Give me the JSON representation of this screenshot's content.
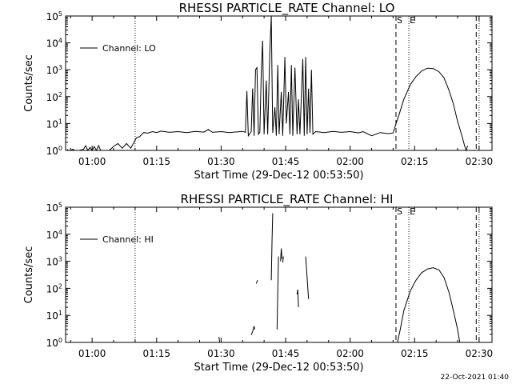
{
  "chart_data": [
    {
      "type": "line",
      "title": "RHESSI PARTICLE_RATE Channel: LO",
      "xlabel": "Start Time (29-Dec-12 00:53:50)",
      "ylabel": "Counts/sec",
      "y_scale": "log",
      "ylim": [
        1,
        100000
      ],
      "xlim": [
        "00:53:50",
        "02:33:00"
      ],
      "x_ticks": [
        "01:00",
        "01:15",
        "01:30",
        "01:45",
        "02:00",
        "02:15",
        "02:30"
      ],
      "y_ticks": [
        "10^0",
        "10^1",
        "10^2",
        "10^3",
        "10^4",
        "10^5"
      ],
      "legend": {
        "entries": [
          "Channel: LO"
        ],
        "placement": "upper-left"
      },
      "markers": [
        {
          "time": "01:10:00",
          "style": "dotted"
        },
        {
          "time": "02:10:40",
          "style": "dashed",
          "label": "S"
        },
        {
          "time": "02:13:40",
          "style": "dotted",
          "label": "E"
        },
        {
          "time": "02:29:20",
          "style": "dashed"
        },
        {
          "time": "02:30:00",
          "style": "dotted"
        }
      ],
      "series": [
        {
          "name": "Channel: LO",
          "points": [
            [
              "00:54:10",
              1.1
            ],
            [
              "00:54:30",
              1
            ],
            [
              "00:55:00",
              1
            ],
            [
              "00:55:30",
              1.1
            ],
            [
              "00:56:00",
              1
            ],
            [
              "00:57:00",
              1
            ],
            [
              "00:58:00",
              1.1
            ],
            [
              "00:58:30",
              1.5
            ],
            [
              "00:59:00",
              1
            ],
            [
              "00:59:30",
              1.3
            ],
            [
              "01:00:00",
              1
            ],
            [
              "01:00:30",
              1.4
            ],
            [
              "01:01:00",
              1
            ],
            [
              "01:01:30",
              1.5
            ],
            [
              "01:02:00",
              1
            ],
            [
              "01:03:00",
              1
            ],
            [
              "01:04:00",
              1
            ],
            [
              "01:05:00",
              1.4
            ],
            [
              "01:06:00",
              1.8
            ],
            [
              "01:07:00",
              1.2
            ],
            [
              "01:08:00",
              1.8
            ],
            [
              "01:09:00",
              1.2
            ],
            [
              "01:09:40",
              1.9
            ],
            [
              "01:10:20",
              3.0
            ],
            [
              "01:11:00",
              3.2
            ],
            [
              "01:12:00",
              4.6
            ],
            [
              "01:13:00",
              4.4
            ],
            [
              "01:14:00",
              5.0
            ],
            [
              "01:15:00",
              4.6
            ],
            [
              "01:16:00",
              5.2
            ],
            [
              "01:18:00",
              4.7
            ],
            [
              "01:20:00",
              5.0
            ],
            [
              "01:22:00",
              4.6
            ],
            [
              "01:24:00",
              5.1
            ],
            [
              "01:26:00",
              4.8
            ],
            [
              "01:27:00",
              6.0
            ],
            [
              "01:28:00",
              4.7
            ],
            [
              "01:30:00",
              5.0
            ],
            [
              "01:32:00",
              4.6
            ],
            [
              "01:33:00",
              4.8
            ],
            [
              "01:34:00",
              4.9
            ],
            [
              "01:35:00",
              5.1
            ],
            [
              "01:35:40",
              4.7
            ],
            [
              "01:36:00",
              160
            ],
            [
              "01:36:20",
              3.5
            ],
            [
              "01:37:00",
              5.0
            ],
            [
              "01:37:20",
              200
            ],
            [
              "01:37:40",
              3.5
            ],
            [
              "01:38:00",
              1000
            ],
            [
              "01:38:20",
              1200
            ],
            [
              "01:38:40",
              4.0
            ],
            [
              "01:39:00",
              4.7
            ],
            [
              "01:39:20",
              800
            ],
            [
              "01:39:40",
              12000
            ],
            [
              "01:40:00",
              4.0
            ],
            [
              "01:40:30",
              400
            ],
            [
              "01:40:50",
              4.0
            ],
            [
              "01:41:20",
              5000
            ],
            [
              "01:41:40",
              100000
            ],
            [
              "01:42:00",
              4.5
            ],
            [
              "01:42:30",
              40
            ],
            [
              "01:42:50",
              3.5
            ],
            [
              "01:43:10",
              1500
            ],
            [
              "01:43:30",
              4.0
            ],
            [
              "01:44:00",
              150
            ],
            [
              "01:44:20",
              3.5
            ],
            [
              "01:44:50",
              3000
            ],
            [
              "01:45:10",
              10
            ],
            [
              "01:45:40",
              150
            ],
            [
              "01:46:00",
              4.0
            ],
            [
              "01:46:20",
              1500
            ],
            [
              "01:46:40",
              3.5
            ],
            [
              "01:47:10",
              1200
            ],
            [
              "01:47:40",
              4.0
            ],
            [
              "01:48:00",
              80
            ],
            [
              "01:48:20",
              4.0
            ],
            [
              "01:49:00",
              2500
            ],
            [
              "01:49:20",
              3.5
            ],
            [
              "01:49:40",
              3000
            ],
            [
              "01:50:00",
              4.0
            ],
            [
              "01:50:20",
              200
            ],
            [
              "01:50:40",
              4.5
            ],
            [
              "01:51:00",
              1000
            ],
            [
              "01:51:20",
              4.0
            ],
            [
              "01:52:00",
              5.0
            ],
            [
              "01:54:00",
              4.6
            ],
            [
              "01:56:00",
              5.1
            ],
            [
              "01:58:00",
              4.7
            ],
            [
              "02:00:00",
              5.0
            ],
            [
              "02:02:00",
              4.5
            ],
            [
              "02:03:00",
              5.0
            ],
            [
              "02:05:00",
              3.5
            ],
            [
              "02:07:00",
              4.6
            ],
            [
              "02:09:00",
              4.2
            ],
            [
              "02:10:00",
              4.5
            ],
            [
              "02:10:40",
              10
            ],
            [
              "02:11:20",
              20
            ],
            [
              "02:12:30",
              80
            ],
            [
              "02:14:00",
              280
            ],
            [
              "02:15:20",
              560
            ],
            [
              "02:16:40",
              900
            ],
            [
              "02:18:00",
              1150
            ],
            [
              "02:19:20",
              1100
            ],
            [
              "02:20:40",
              850
            ],
            [
              "02:21:50",
              500
            ],
            [
              "02:23:00",
              170
            ],
            [
              "02:24:00",
              55
            ],
            [
              "02:25:00",
              12
            ],
            [
              "02:26:00",
              3.5
            ],
            [
              "02:26:40",
              1.4
            ],
            [
              "02:27:00",
              1
            ],
            [
              "02:27:20",
              1.5
            ]
          ]
        }
      ]
    },
    {
      "type": "line",
      "title": "RHESSI PARTICLE_RATE Channel: HI",
      "xlabel": "Start Time (29-Dec-12 00:53:50)",
      "ylabel": "Counts/sec",
      "y_scale": "log",
      "ylim": [
        1,
        100000
      ],
      "xlim": [
        "00:53:50",
        "02:33:00"
      ],
      "x_ticks": [
        "01:00",
        "01:15",
        "01:30",
        "01:45",
        "02:00",
        "02:15",
        "02:30"
      ],
      "y_ticks": [
        "10^0",
        "10^1",
        "10^2",
        "10^3",
        "10^4",
        "10^5"
      ],
      "legend": {
        "entries": [
          "Channel: HI"
        ],
        "placement": "upper-left"
      },
      "markers": [
        {
          "time": "01:10:00",
          "style": "dotted"
        },
        {
          "time": "02:10:40",
          "style": "dashed",
          "label": "S"
        },
        {
          "time": "02:13:40",
          "style": "dotted",
          "label": "E"
        },
        {
          "time": "02:29:20",
          "style": "dashed"
        },
        {
          "time": "02:30:00",
          "style": "dotted"
        }
      ],
      "segments": [
        [
          [
            "01:29:30",
            1.6
          ],
          [
            "01:29:40",
            1.0
          ]
        ],
        [
          [
            "01:37:00",
            1.9
          ],
          [
            "01:37:20",
            2.5
          ],
          [
            "01:37:40",
            4.0
          ],
          [
            "01:37:50",
            3.0
          ]
        ],
        [
          [
            "01:38:10",
            150
          ],
          [
            "01:38:30",
            200
          ]
        ],
        [
          [
            "01:41:40",
            200
          ],
          [
            "01:41:50",
            5000
          ],
          [
            "01:42:00",
            60000
          ]
        ],
        [
          [
            "01:43:00",
            3.0
          ],
          [
            "01:43:20",
            1500
          ]
        ],
        [
          [
            "01:43:50",
            1000
          ],
          [
            "01:44:00",
            3000
          ],
          [
            "01:44:10",
            1200
          ]
        ],
        [
          [
            "01:44:20",
            900
          ],
          [
            "01:44:30",
            1500
          ]
        ],
        [
          [
            "01:47:40",
            60
          ],
          [
            "01:47:50",
            90
          ],
          [
            "01:48:00",
            20
          ]
        ],
        [
          [
            "01:49:40",
            1500
          ],
          [
            "01:50:20",
            40
          ]
        ]
      ],
      "series": [
        {
          "name": "Channel: HI",
          "points": [
            [
              "02:11:00",
              1
            ],
            [
              "02:11:40",
              3
            ],
            [
              "02:12:30",
              15
            ],
            [
              "02:14:00",
              80
            ],
            [
              "02:15:20",
              200
            ],
            [
              "02:16:40",
              380
            ],
            [
              "02:18:00",
              520
            ],
            [
              "02:19:20",
              580
            ],
            [
              "02:20:40",
              480
            ],
            [
              "02:21:50",
              250
            ],
            [
              "02:23:00",
              70
            ],
            [
              "02:24:10",
              12
            ],
            [
              "02:25:00",
              3
            ],
            [
              "02:25:30",
              1
            ]
          ]
        }
      ]
    }
  ],
  "footer": {
    "timestamp": "22-Oct-2021 01:40"
  }
}
